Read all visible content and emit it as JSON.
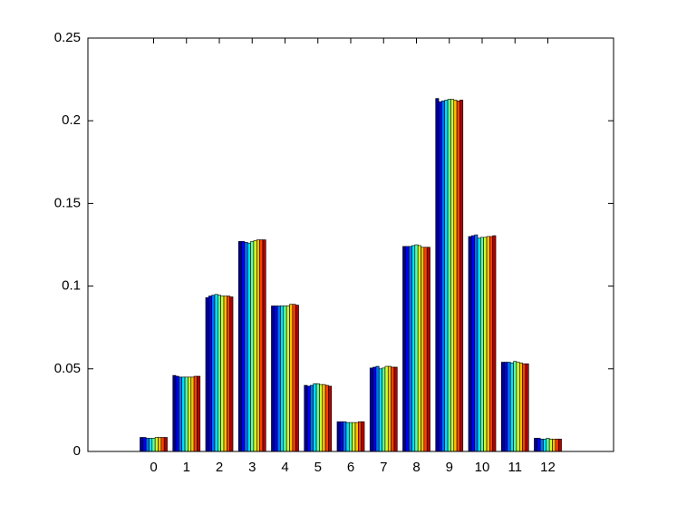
{
  "chart_data": {
    "type": "bar",
    "x": [
      0,
      1,
      2,
      3,
      4,
      5,
      6,
      7,
      8,
      9,
      10,
      11,
      12
    ],
    "xlim": [
      -2,
      14
    ],
    "xticks": [
      0,
      1,
      2,
      3,
      4,
      5,
      6,
      7,
      8,
      9,
      10,
      11,
      12
    ],
    "ylim": [
      0,
      0.25
    ],
    "yticks": [
      0,
      0.05,
      0.1,
      0.15,
      0.2,
      0.25
    ],
    "grid": false,
    "series": [
      {
        "color": "#00008f",
        "values": [
          0.0085,
          0.046,
          0.093,
          0.127,
          0.088,
          0.04,
          0.018,
          0.0505,
          0.124,
          0.2135,
          0.13,
          0.054,
          0.008
        ]
      },
      {
        "color": "#0000ff",
        "values": [
          0.0085,
          0.0455,
          0.094,
          0.127,
          0.088,
          0.0395,
          0.018,
          0.051,
          0.124,
          0.2115,
          0.1305,
          0.054,
          0.008
        ]
      },
      {
        "color": "#0070ff",
        "values": [
          0.008,
          0.045,
          0.0945,
          0.1265,
          0.088,
          0.04,
          0.018,
          0.0515,
          0.124,
          0.212,
          0.131,
          0.054,
          0.0075
        ]
      },
      {
        "color": "#00e0ff",
        "values": [
          0.008,
          0.045,
          0.095,
          0.126,
          0.088,
          0.041,
          0.0175,
          0.05,
          0.1245,
          0.2125,
          0.129,
          0.0535,
          0.0075
        ]
      },
      {
        "color": "#60ffa0",
        "values": [
          0.008,
          0.045,
          0.0945,
          0.127,
          0.088,
          0.041,
          0.0175,
          0.0505,
          0.125,
          0.213,
          0.1295,
          0.0545,
          0.008
        ]
      },
      {
        "color": "#d0ff30",
        "values": [
          0.0085,
          0.045,
          0.094,
          0.1275,
          0.088,
          0.0405,
          0.0175,
          0.0515,
          0.1245,
          0.213,
          0.1295,
          0.054,
          0.0075
        ]
      },
      {
        "color": "#ffc000",
        "values": [
          0.0085,
          0.045,
          0.094,
          0.128,
          0.089,
          0.0405,
          0.0175,
          0.0515,
          0.1235,
          0.2125,
          0.13,
          0.0535,
          0.0075
        ]
      },
      {
        "color": "#ff4000",
        "values": [
          0.0085,
          0.0455,
          0.094,
          0.128,
          0.089,
          0.04,
          0.018,
          0.051,
          0.1235,
          0.212,
          0.13,
          0.053,
          0.0075
        ]
      },
      {
        "color": "#b00000",
        "values": [
          0.0085,
          0.0455,
          0.0935,
          0.128,
          0.0885,
          0.0395,
          0.018,
          0.051,
          0.1235,
          0.2125,
          0.1305,
          0.053,
          0.0075
        ]
      }
    ]
  }
}
